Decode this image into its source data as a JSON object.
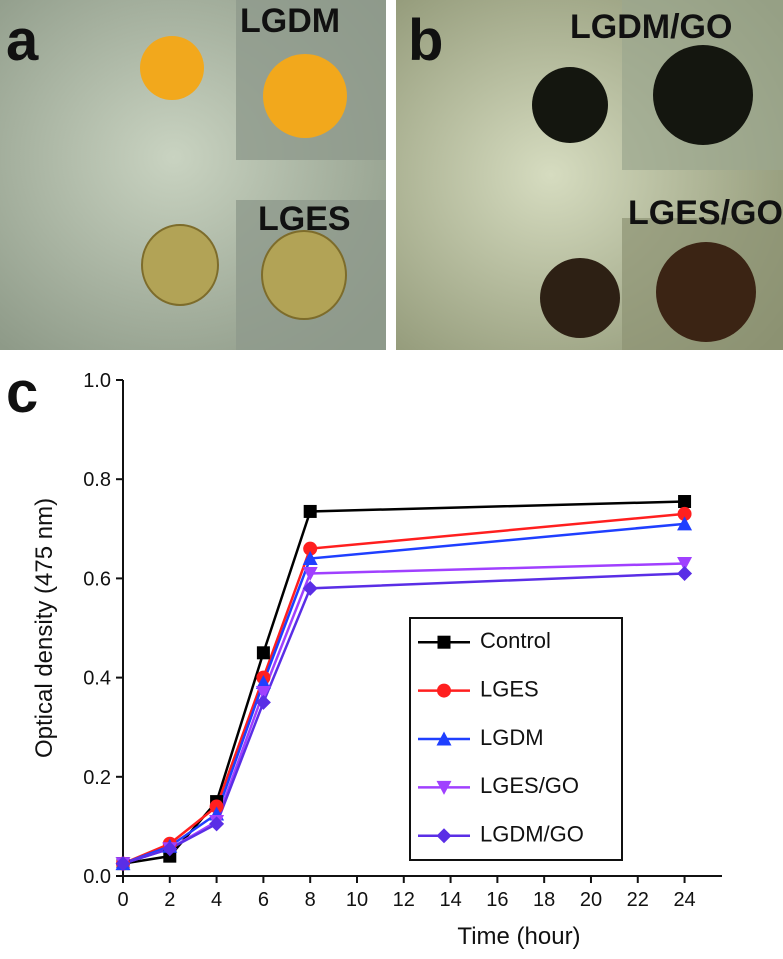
{
  "panels": [
    {
      "label": "a",
      "insets": [
        "LGDM",
        "LGES"
      ]
    },
    {
      "label": "b",
      "insets": [
        "LGDM/GO",
        "LGES/GO"
      ]
    }
  ],
  "chart_data": {
    "type": "line",
    "label": "c",
    "xlabel": "Time (hour)",
    "ylabel": "Optical density (475 nm)",
    "x": [
      0,
      2,
      4,
      6,
      8,
      24
    ],
    "series": [
      {
        "name": "Control",
        "color": "#000000",
        "marker": "square",
        "values": [
          0.025,
          0.04,
          0.15,
          0.45,
          0.735,
          0.755
        ]
      },
      {
        "name": "LGES",
        "color": "#ff1f1f",
        "marker": "circle",
        "values": [
          0.025,
          0.065,
          0.14,
          0.4,
          0.66,
          0.73
        ]
      },
      {
        "name": "LGDM",
        "color": "#1f3fff",
        "marker": "triangle-up",
        "values": [
          0.025,
          0.06,
          0.125,
          0.39,
          0.64,
          0.71
        ]
      },
      {
        "name": "LGES/GO",
        "color": "#a040ff",
        "marker": "triangle-down",
        "values": [
          0.025,
          0.055,
          0.11,
          0.37,
          0.61,
          0.63
        ]
      },
      {
        "name": "LGDM/GO",
        "color": "#5a2ee6",
        "marker": "diamond",
        "values": [
          0.025,
          0.055,
          0.105,
          0.35,
          0.58,
          0.61
        ]
      }
    ],
    "xlim": [
      0,
      25.6
    ],
    "ylim": [
      0,
      1
    ],
    "xticks": [
      0,
      2,
      4,
      6,
      8,
      10,
      12,
      14,
      16,
      18,
      20,
      22,
      24
    ],
    "yticks": [
      {
        "value": 0,
        "label": "0.0"
      },
      0.2,
      0.4,
      0.6,
      0.8,
      {
        "value": 1,
        "label": "1.0"
      }
    ]
  }
}
